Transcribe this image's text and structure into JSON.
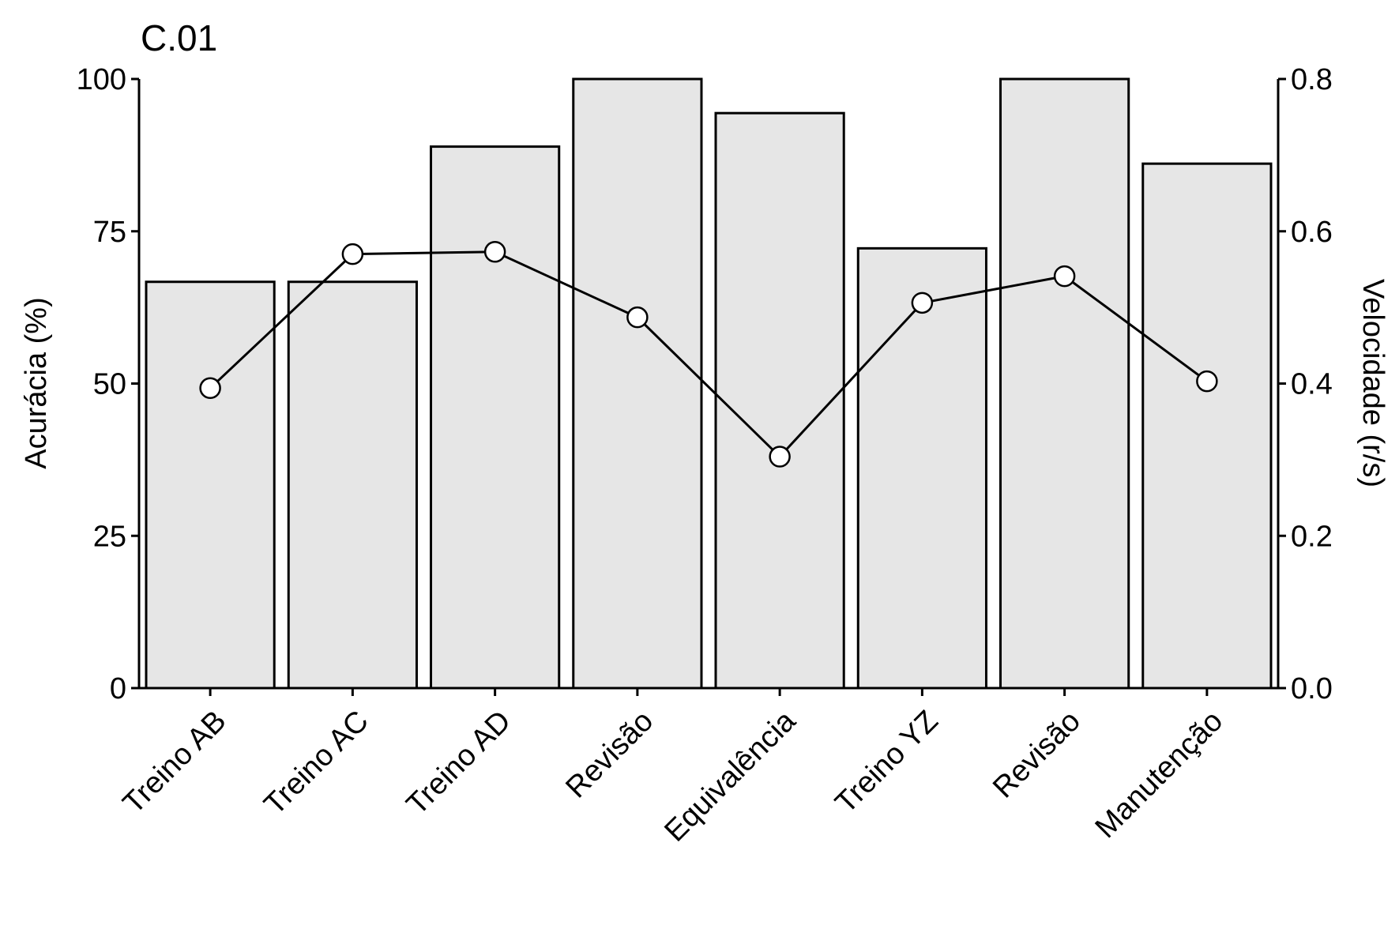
{
  "chart_data": {
    "type": "bar",
    "title": "C.01",
    "categories": [
      "Treino AB",
      "Treino AC",
      "Treino AD",
      "Revisão",
      "Equivalência",
      "Treino YZ",
      "Revisão",
      "Manutenção"
    ],
    "series": [
      {
        "type": "bar",
        "axis": "left",
        "values": [
          66.7,
          66.7,
          88.9,
          100,
          94.4,
          72.2,
          100,
          86.1
        ],
        "fill": "#e6e6e6",
        "stroke": "#000000"
      },
      {
        "type": "line",
        "axis": "right",
        "values": [
          0.394,
          0.57,
          0.573,
          0.487,
          0.304,
          0.506,
          0.541,
          0.403
        ],
        "stroke": "#000000",
        "marker_fill": "#ffffff"
      }
    ],
    "ylabel": "Acurácia (%)",
    "ylim": [
      0,
      100
    ],
    "yticks": [
      0,
      25,
      50,
      75,
      100
    ],
    "ytick_labels": [
      "0",
      "25",
      "50",
      "75",
      "100"
    ],
    "y2label": "Velocidade (r/s)",
    "y2lim": [
      0,
      0.8
    ],
    "y2ticks": [
      0,
      0.2,
      0.4,
      0.6,
      0.8
    ],
    "y2tick_labels": [
      "0.0",
      "0.2",
      "0.4",
      "0.6",
      "0.8"
    ],
    "grid": false,
    "legend": "none"
  }
}
